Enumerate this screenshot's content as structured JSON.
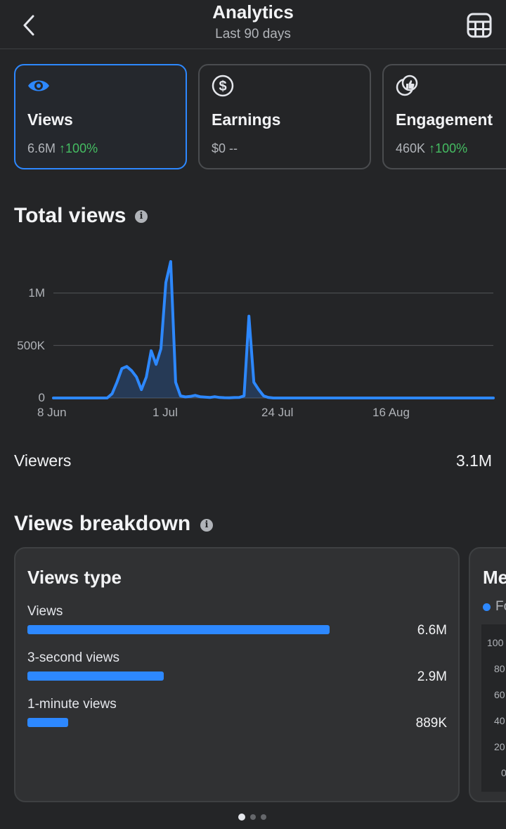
{
  "header": {
    "title": "Analytics",
    "subtitle": "Last 90 days"
  },
  "metrics": [
    {
      "label": "Views",
      "value": "6.6M",
      "change": "100%",
      "icon": "eye-icon",
      "active": true
    },
    {
      "label": "Earnings",
      "value": "$0",
      "change": "--",
      "icon": "dollar-icon",
      "active": false
    },
    {
      "label": "Engagement",
      "value": "460K",
      "change": "100%",
      "icon": "thumbs-up-icon",
      "active": false
    }
  ],
  "total_views": {
    "title": "Total views",
    "info": "i"
  },
  "chart_data": {
    "type": "area",
    "ylim": [
      0,
      1300000
    ],
    "y_ticks": [
      "0",
      "500K",
      "1M"
    ],
    "x_ticks": [
      "8 Jun",
      "1 Jul",
      "24 Jul",
      "16 Aug"
    ],
    "grid": true,
    "color": "#2d88ff",
    "series": [
      {
        "x": [
          "8 Jun",
          "9 Jun",
          "10 Jun",
          "11 Jun",
          "12 Jun",
          "13 Jun",
          "14 Jun",
          "15 Jun",
          "16 Jun",
          "17 Jun",
          "18 Jun",
          "19 Jun",
          "20 Jun",
          "21 Jun",
          "22 Jun",
          "23 Jun",
          "24 Jun",
          "25 Jun",
          "26 Jun",
          "27 Jun",
          "28 Jun",
          "29 Jun",
          "30 Jun",
          "1 Jul",
          "2 Jul",
          "3 Jul",
          "4 Jul",
          "5 Jul",
          "6 Jul",
          "7 Jul",
          "8 Jul",
          "9 Jul",
          "10 Jul",
          "11 Jul",
          "12 Jul",
          "13 Jul",
          "14 Jul",
          "15 Jul",
          "16 Jul",
          "17 Jul",
          "18 Jul",
          "19 Jul",
          "20 Jul",
          "21 Jul",
          "22 Jul",
          "23 Jul",
          "24 Jul",
          "25 Jul",
          "26 Jul",
          "27 Jul",
          "28 Jul",
          "29 Jul",
          "30 Jul",
          "31 Jul",
          "1 Aug",
          "2 Aug",
          "3 Aug",
          "4 Aug",
          "5 Aug",
          "6 Aug",
          "7 Aug",
          "8 Aug",
          "9 Aug",
          "10 Aug",
          "11 Aug",
          "12 Aug",
          "13 Aug",
          "14 Aug",
          "15 Aug",
          "16 Aug",
          "17 Aug",
          "18 Aug",
          "19 Aug",
          "20 Aug",
          "21 Aug",
          "22 Aug",
          "23 Aug",
          "24 Aug",
          "25 Aug",
          "26 Aug",
          "27 Aug",
          "28 Aug",
          "29 Aug",
          "30 Aug",
          "31 Aug",
          "1 Sep",
          "2 Sep",
          "3 Sep",
          "4 Sep",
          "5 Sep",
          "6 Sep"
        ],
        "values": [
          0,
          0,
          0,
          0,
          0,
          0,
          0,
          0,
          0,
          0,
          0,
          0,
          40000,
          150000,
          280000,
          300000,
          260000,
          200000,
          80000,
          200000,
          450000,
          320000,
          470000,
          1100000,
          1300000,
          150000,
          20000,
          10000,
          15000,
          25000,
          12000,
          8000,
          5000,
          12000,
          5000,
          3000,
          2000,
          4000,
          5000,
          20000,
          780000,
          150000,
          80000,
          20000,
          5000,
          0,
          0,
          0,
          0,
          0,
          0,
          0,
          0,
          0,
          0,
          0,
          0,
          0,
          0,
          0,
          0,
          0,
          0,
          0,
          0,
          0,
          0,
          0,
          0,
          0,
          0,
          0,
          0,
          0,
          0,
          0,
          0,
          0,
          0,
          0,
          0,
          0,
          0,
          0,
          0,
          0,
          0,
          0,
          0,
          0,
          0
        ]
      }
    ]
  },
  "viewers": {
    "label": "Viewers",
    "value": "3.1M"
  },
  "breakdown": {
    "title": "Views breakdown",
    "info": "i",
    "card1": {
      "title": "Views type",
      "rows": [
        {
          "label": "Views",
          "value": "6.6M",
          "fraction": 1.0
        },
        {
          "label": "3-second views",
          "value": "2.9M",
          "fraction": 0.45
        },
        {
          "label": "1-minute views",
          "value": "889K",
          "fraction": 0.135
        }
      ]
    },
    "card2": {
      "title": "Me",
      "legend": "Fo",
      "ticks": [
        "100",
        "80",
        "60",
        "40",
        "20",
        "0"
      ]
    }
  },
  "pager": {
    "count": 3,
    "active": 0
  }
}
